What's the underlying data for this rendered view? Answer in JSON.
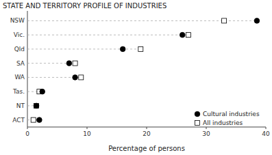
{
  "chart_data": {
    "type": "dot",
    "title": "STATE AND TERRITORY PROFILE OF INDUSTRIES",
    "orientation": "horizontal",
    "categories": [
      "NSW",
      "Vic.",
      "Qld",
      "SA",
      "WA",
      "Tas.",
      "NT",
      "ACT"
    ],
    "series": [
      {
        "name": "Cultural industries",
        "color": "#000000",
        "marker": "circle",
        "values": [
          38.5,
          26.0,
          16.0,
          7.0,
          8.0,
          2.5,
          1.5,
          2.0
        ]
      },
      {
        "name": "All industries",
        "color": "#ffffff",
        "marker": "square",
        "values": [
          33.0,
          27.0,
          19.0,
          8.0,
          9.0,
          2.0,
          1.5,
          1.0
        ]
      }
    ],
    "x_label": "Percentage of persons",
    "xlim": [
      0,
      40
    ],
    "xticks": [
      0,
      10,
      20,
      30,
      40
    ],
    "line_style": "dashed",
    "legend": "lower right",
    "grid": false
  }
}
